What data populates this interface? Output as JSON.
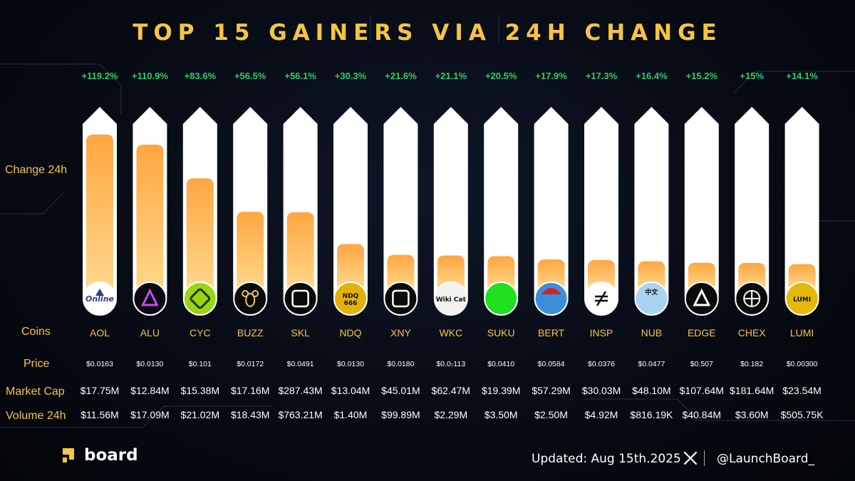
{
  "title": "TOP 15 GAINERS VIA 24H CHANGE",
  "row_labels": {
    "change": "Change 24h",
    "coins": "Coins",
    "price": "Price",
    "market_cap": "Market Cap",
    "volume": "Volume 24h"
  },
  "colors": {
    "title": "#f5c542",
    "change_text": "#2ecc71",
    "bar_top": "#ffa640",
    "bar_bottom": "#ffd78a",
    "track": "#ffffff",
    "text_white": "#ffffff"
  },
  "chart_data": {
    "type": "bar",
    "title": "TOP 15 GAINERS VIA 24H CHANGE",
    "ylabel": "Change 24h",
    "ylim": [
      0,
      130
    ],
    "categories": [
      "AOL",
      "ALU",
      "CYC",
      "BUZZ",
      "SKL",
      "NDQ",
      "XNY",
      "WKC",
      "SUKU",
      "BERT",
      "INSP",
      "NUB",
      "EDGE",
      "CHEX",
      "LUMI"
    ],
    "values": [
      119.2,
      110.9,
      83.6,
      56.5,
      56.1,
      30.3,
      21.6,
      21.1,
      20.5,
      17.9,
      17.3,
      16.4,
      15.2,
      15,
      14.1
    ],
    "value_labels": [
      "+119.2%",
      "+110.9%",
      "+83.6%",
      "+56.5%",
      "+56.1%",
      "+30.3%",
      "+21.6%",
      "+21.1%",
      "+20.5%",
      "+17.9%",
      "+17.3%",
      "+16.4%",
      "+15.2%",
      "+15%",
      "+14.1%"
    ],
    "icons": [
      "aol-logo-icon",
      "alu-logo-icon",
      "cyc-logo-icon",
      "buzz-bee-icon",
      "skl-logo-icon",
      "ndq-666-icon",
      "xny-logo-icon",
      "wkc-cat-icon",
      "suku-green-circle-icon",
      "bert-character-icon",
      "insp-logo-icon",
      "nub-cat-icon",
      "edge-triangle-icon",
      "chex-network-icon",
      "lumi-logo-icon"
    ],
    "icon_texts": [
      "Online",
      "",
      "",
      "",
      "",
      "NDQ\n666",
      "",
      "Wiki Cat",
      "",
      "",
      "",
      "中文",
      "",
      "",
      "LUMI"
    ],
    "prices": [
      "$0.0163",
      "$0.0130",
      "$0.101",
      "$0.0172",
      "$0.0491",
      "$0.0130",
      "$0.0180",
      "$0.0₇113",
      "$0.0410",
      "$0.0584",
      "$0.0376",
      "$0.0477",
      "$0.507",
      "$0.182",
      "$0.00300"
    ],
    "market_caps": [
      "$17.75M",
      "$12.84M",
      "$15.38M",
      "$17.16M",
      "$287.43M",
      "$13.04M",
      "$45.01M",
      "$62.47M",
      "$19.39M",
      "$57.29M",
      "$30.03M",
      "$48.10M",
      "$107.64M",
      "$181.64M",
      "$23.54M"
    ],
    "volumes": [
      "$11.56M",
      "$17.09M",
      "$21.02M",
      "$18.43M",
      "$763.21M",
      "$1.40M",
      "$99.89M",
      "$2.29M",
      "$3.50M",
      "$2.50M",
      "$4.92M",
      "$816.19K",
      "$40.84M",
      "$3.60M",
      "$505.75K"
    ]
  },
  "footer": {
    "brand": "board",
    "updated": "Updated: Aug 15th.2025",
    "handle": "@LaunchBoard_",
    "social_icon": "x-icon"
  }
}
